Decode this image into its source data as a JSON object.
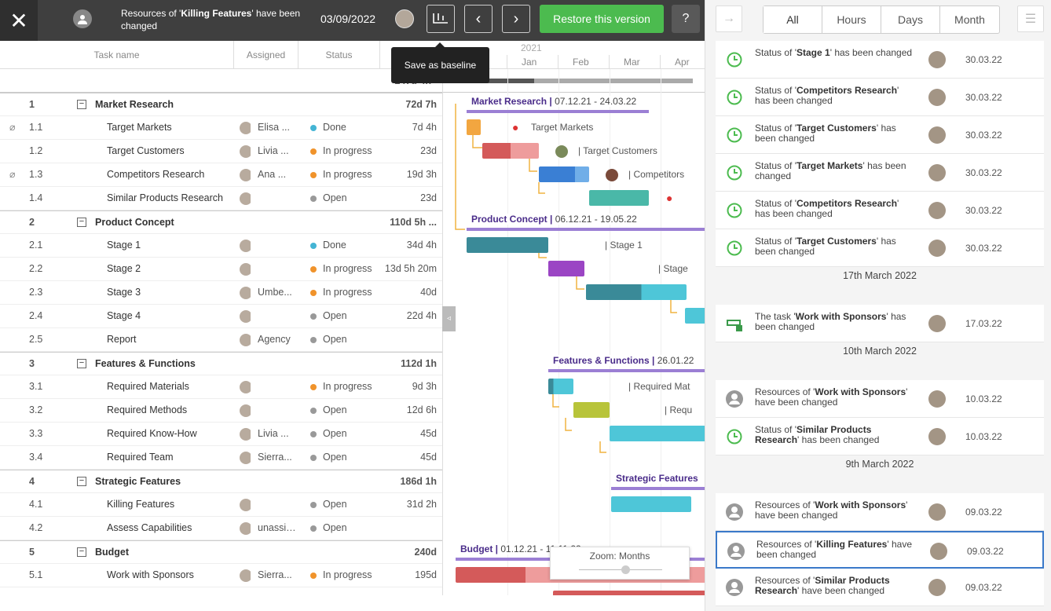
{
  "toolbar": {
    "close_icon": "✕",
    "message_prefix": "Resources of '",
    "message_bold": "Killing Features",
    "message_suffix": "' have been changed",
    "date": "03/09/2022",
    "restore_label": "Restore this version",
    "help_icon": "?",
    "tooltip": "Save as baseline"
  },
  "grid": {
    "col_task": "Task name",
    "col_assigned": "Assigned",
    "col_status": "Status",
    "project_duration": "247d 4h",
    "rows": [
      {
        "num": "1",
        "name": "Market Research",
        "dur": "72d 7h",
        "group": true
      },
      {
        "num": "1.1",
        "name": "Target Markets",
        "assignee": "Elisa ...",
        "status": "Done",
        "dur": "7d 4h",
        "clip": true
      },
      {
        "num": "1.2",
        "name": "Target Customers",
        "assignee": "Livia ...",
        "status": "In progress",
        "dur": "23d"
      },
      {
        "num": "1.3",
        "name": "Competitors Research",
        "assignee": "Ana ...",
        "status": "In progress",
        "dur": "19d 3h",
        "clip": true
      },
      {
        "num": "1.4",
        "name": "Similar Products Research",
        "assignee": "",
        "status": "Open",
        "dur": "23d"
      },
      {
        "num": "2",
        "name": "Product Concept",
        "dur": "110d 5h ...",
        "group": true
      },
      {
        "num": "2.1",
        "name": "Stage 1",
        "assignee": "",
        "status": "Done",
        "dur": "34d 4h"
      },
      {
        "num": "2.2",
        "name": "Stage 2",
        "assignee": "",
        "status": "In progress",
        "dur": "13d 5h 20m"
      },
      {
        "num": "2.3",
        "name": "Stage 3",
        "assignee": "Umbe...",
        "status": "In progress",
        "dur": "40d"
      },
      {
        "num": "2.4",
        "name": "Stage 4",
        "assignee": "",
        "status": "Open",
        "dur": "22d 4h"
      },
      {
        "num": "2.5",
        "name": "Report",
        "assignee": "Agency",
        "status": "Open",
        "dur": ""
      },
      {
        "num": "3",
        "name": "Features & Functions",
        "dur": "112d 1h",
        "group": true
      },
      {
        "num": "3.1",
        "name": "Required Materials",
        "assignee": "",
        "status": "In progress",
        "dur": "9d 3h"
      },
      {
        "num": "3.2",
        "name": "Required Methods",
        "assignee": "",
        "status": "Open",
        "dur": "12d 6h"
      },
      {
        "num": "3.3",
        "name": "Required Know-How",
        "assignee": "Livia ...",
        "status": "Open",
        "dur": "45d"
      },
      {
        "num": "3.4",
        "name": "Required Team",
        "assignee": "Sierra...",
        "status": "Open",
        "dur": "45d"
      },
      {
        "num": "4",
        "name": "Strategic Features",
        "dur": "186d 1h",
        "group": true
      },
      {
        "num": "4.1",
        "name": "Killing Features",
        "assignee": "",
        "status": "Open",
        "dur": "31d 2h"
      },
      {
        "num": "4.2",
        "name": "Assess Capabilities",
        "assignee": "unassigned",
        "status": "Open",
        "dur": ""
      },
      {
        "num": "5",
        "name": "Budget",
        "dur": "240d",
        "group": true
      },
      {
        "num": "5.1",
        "name": "Work with Sponsors",
        "assignee": "Sierra...",
        "status": "In progress",
        "dur": "195d"
      }
    ]
  },
  "timescale": {
    "year": "2021",
    "months": [
      "Jan",
      "Feb",
      "Mar",
      "Apr"
    ]
  },
  "gantt": {
    "g1": "Market Research",
    "g1d": "07.12.21 - 24.03.22",
    "g2": "Product Concept",
    "g2d": "06.12.21 - 19.05.22",
    "g3": "Features & Functions",
    "g3d": "26.01.22",
    "g4": "Strategic Features",
    "g5": "Budget",
    "g5d": "01.12.21 - 11.11.22",
    "l11": "Target Markets",
    "l12": "Target Customers",
    "l13": "Competitors",
    "l21": "Stage 1",
    "l22": "Stage",
    "l31": "Required Mat",
    "l32": "Requ"
  },
  "zoom": {
    "label": "Zoom: Months"
  },
  "history": {
    "filters": [
      "All",
      "Hours",
      "Days",
      "Month"
    ],
    "items": [
      {
        "pre": "Status of '",
        "b": "Stage 1",
        "post": "' has been changed",
        "date": "30.03.22",
        "type": "status"
      },
      {
        "pre": "Status of '",
        "b": "Competitors Research",
        "post": "' has been changed",
        "date": "30.03.22",
        "type": "status"
      },
      {
        "pre": "Status of '",
        "b": "Target Customers",
        "post": "' has been changed",
        "date": "30.03.22",
        "type": "status"
      },
      {
        "pre": "Status of '",
        "b": "Target Markets",
        "post": "' has been changed",
        "date": "30.03.22",
        "type": "status"
      },
      {
        "pre": "Status of '",
        "b": "Competitors Research",
        "post": "' has been changed",
        "date": "30.03.22",
        "type": "status"
      },
      {
        "pre": "Status of '",
        "b": "Target Customers",
        "post": "' has been changed",
        "date": "30.03.22",
        "type": "status"
      },
      {
        "sep": "17th March 2022"
      },
      {
        "pre": "The task '",
        "b": "Work with Sponsors",
        "post": "' has been changed",
        "date": "17.03.22",
        "type": "task"
      },
      {
        "sep": "10th March 2022"
      },
      {
        "pre": "Resources of '",
        "b": "Work with Sponsors",
        "post": "' have been changed",
        "date": "10.03.22",
        "type": "res"
      },
      {
        "pre": "Status of '",
        "b": "Similar Products Research",
        "post": "' has been changed",
        "date": "10.03.22",
        "type": "status"
      },
      {
        "sep": "9th March 2022"
      },
      {
        "pre": "Resources of '",
        "b": "Work with Sponsors",
        "post": "' have been changed",
        "date": "09.03.22",
        "type": "res2"
      },
      {
        "pre": "Resources of '",
        "b": "Killing Features",
        "post": "' have been changed",
        "date": "09.03.22",
        "type": "res",
        "sel": true
      },
      {
        "pre": "Resources of '",
        "b": "Similar Products Research",
        "post": "' have been changed",
        "date": "09.03.22",
        "type": "res"
      }
    ]
  },
  "colors": {
    "done": "#44b4d4",
    "progress": "#f0932b",
    "open": "#999999",
    "accent": "#4cbb4f",
    "selected": "#3a79c9"
  }
}
